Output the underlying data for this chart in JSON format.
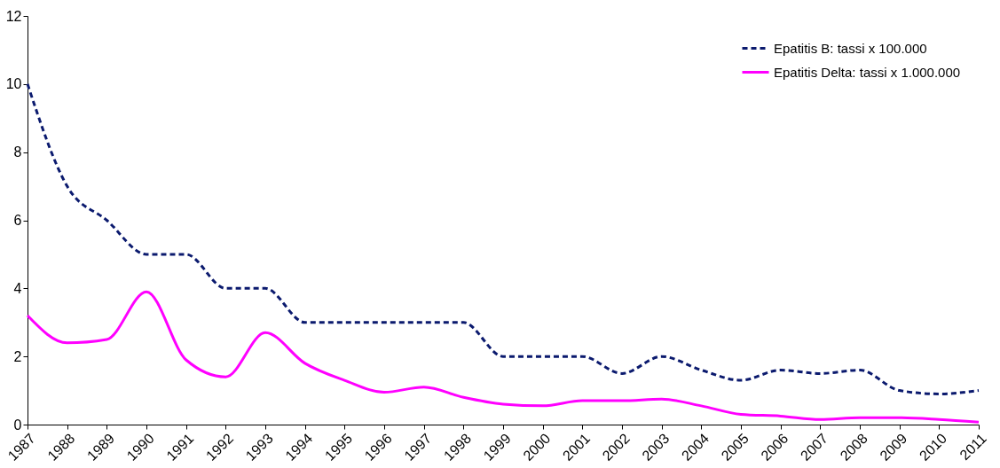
{
  "chart_data": {
    "type": "line",
    "categories": [
      "1987",
      "1988",
      "1989",
      "1990",
      "1991",
      "1992",
      "1993",
      "1994",
      "1995",
      "1996",
      "1997",
      "1998",
      "1999",
      "2000",
      "2001",
      "2002",
      "2003",
      "2004",
      "2005",
      "2006",
      "2007",
      "2008",
      "2009",
      "2010",
      "2011"
    ],
    "series": [
      {
        "name": "Epatitis B: tassi x 100.000",
        "color": "#0b1a6e",
        "line_style": "dashed",
        "values": [
          10,
          7,
          6,
          5,
          5,
          4,
          4,
          3,
          3,
          3,
          3,
          3,
          2,
          2,
          2,
          1.5,
          2,
          1.6,
          1.3,
          1.6,
          1.5,
          1.6,
          1,
          0.9,
          1
        ]
      },
      {
        "name": "Epatitis Delta: tassi x 1.000.000",
        "color": "#ff00ff",
        "line_style": "solid",
        "values": [
          3.2,
          2.4,
          2.5,
          3.9,
          1.9,
          1.4,
          2.7,
          1.8,
          1.3,
          0.95,
          1.1,
          0.8,
          0.6,
          0.55,
          0.7,
          0.7,
          0.75,
          0.55,
          0.3,
          0.25,
          0.15,
          0.2,
          0.2,
          0.15,
          0.07
        ]
      }
    ],
    "ylim": [
      0,
      12
    ],
    "yticks": [
      0,
      2,
      4,
      6,
      8,
      10,
      12
    ],
    "grid": false,
    "legend": "top right"
  }
}
